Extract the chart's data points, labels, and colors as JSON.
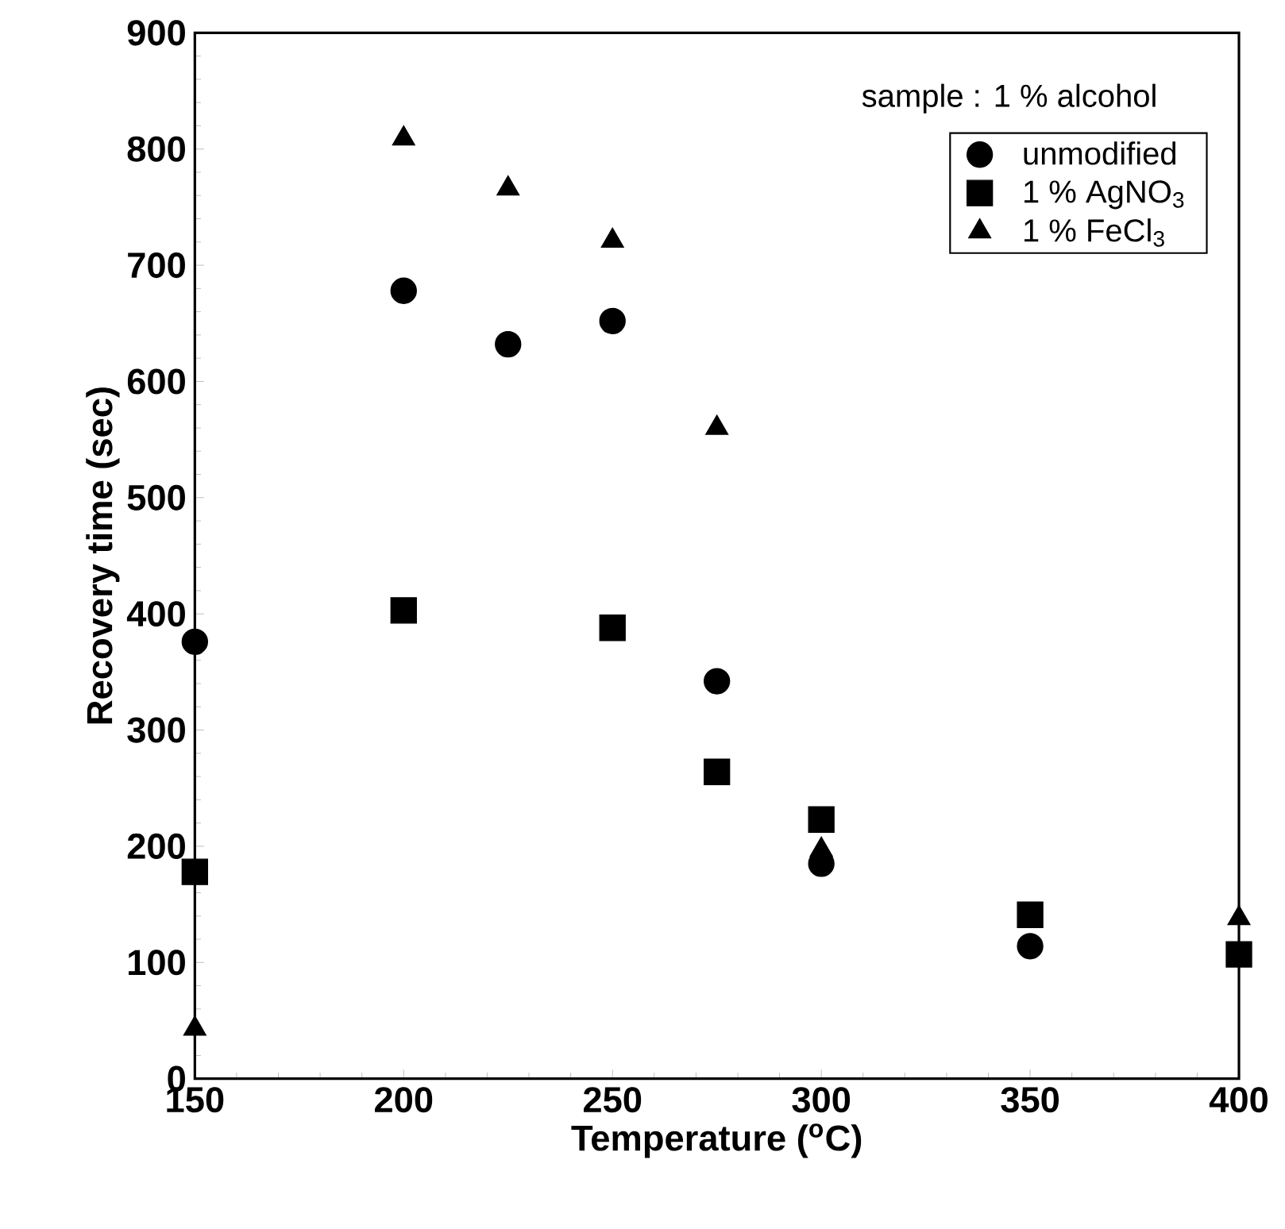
{
  "chart_data": {
    "type": "scatter",
    "xlabel": "Temperature ($^{o}$C)",
    "ylabel": "Recovery time (sec)",
    "x": [
      150,
      200,
      225,
      250,
      275,
      300,
      350,
      400
    ],
    "xlim": [
      150,
      400
    ],
    "xticks": [
      150,
      200,
      250,
      300,
      350,
      400
    ],
    "ylim": [
      0,
      900
    ],
    "yticks": [
      0,
      100,
      200,
      300,
      400,
      500,
      600,
      700,
      800,
      900
    ],
    "grid": false,
    "legend": "top right",
    "legend_title": "sample : 1 % alcohol",
    "series": [
      {
        "name": "unmodified",
        "color": "#000000",
        "marker": "circle",
        "values": [
          376,
          678,
          632,
          652,
          342,
          185,
          114,
          null
        ]
      },
      {
        "name": "1 % AgNO$_{3}$",
        "color": "#000000",
        "marker": "square",
        "values": [
          178,
          403,
          null,
          388,
          264,
          223,
          141,
          107
        ]
      },
      {
        "name": "1 % FeCl$_{3}$",
        "color": "#000000",
        "marker": "triangle",
        "values": [
          43,
          809,
          766,
          721,
          560,
          197,
          null,
          138
        ]
      }
    ]
  }
}
